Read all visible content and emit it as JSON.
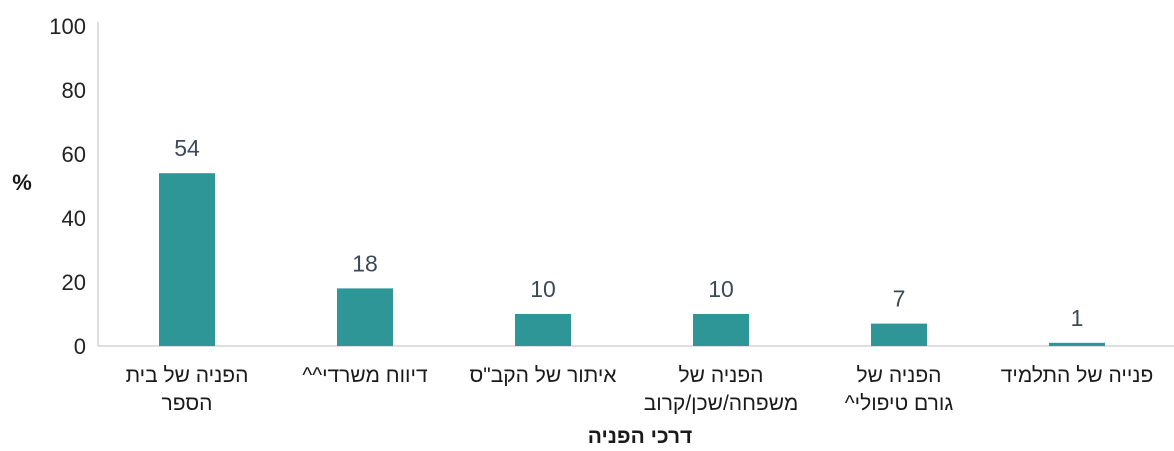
{
  "chart_data": {
    "type": "bar",
    "ylabel": "%",
    "xlabel": "דרכי הפניה",
    "ylim": [
      0,
      100
    ],
    "yticks": [
      0,
      20,
      40,
      60,
      80,
      100
    ],
    "grid": false,
    "bar_color": "#2e9696",
    "categories": [
      [
        "הפניה של בית",
        "הספר"
      ],
      [
        "דיווח משרדי^^"
      ],
      [
        "איתור של הקב\"ס"
      ],
      [
        "הפניה של",
        "משפחה/שכן/קרוב"
      ],
      [
        "הפניה של",
        "גורם טיפולי^"
      ],
      [
        "פנייה של התלמיד"
      ]
    ],
    "values": [
      54,
      18,
      10,
      10,
      7,
      1
    ]
  }
}
